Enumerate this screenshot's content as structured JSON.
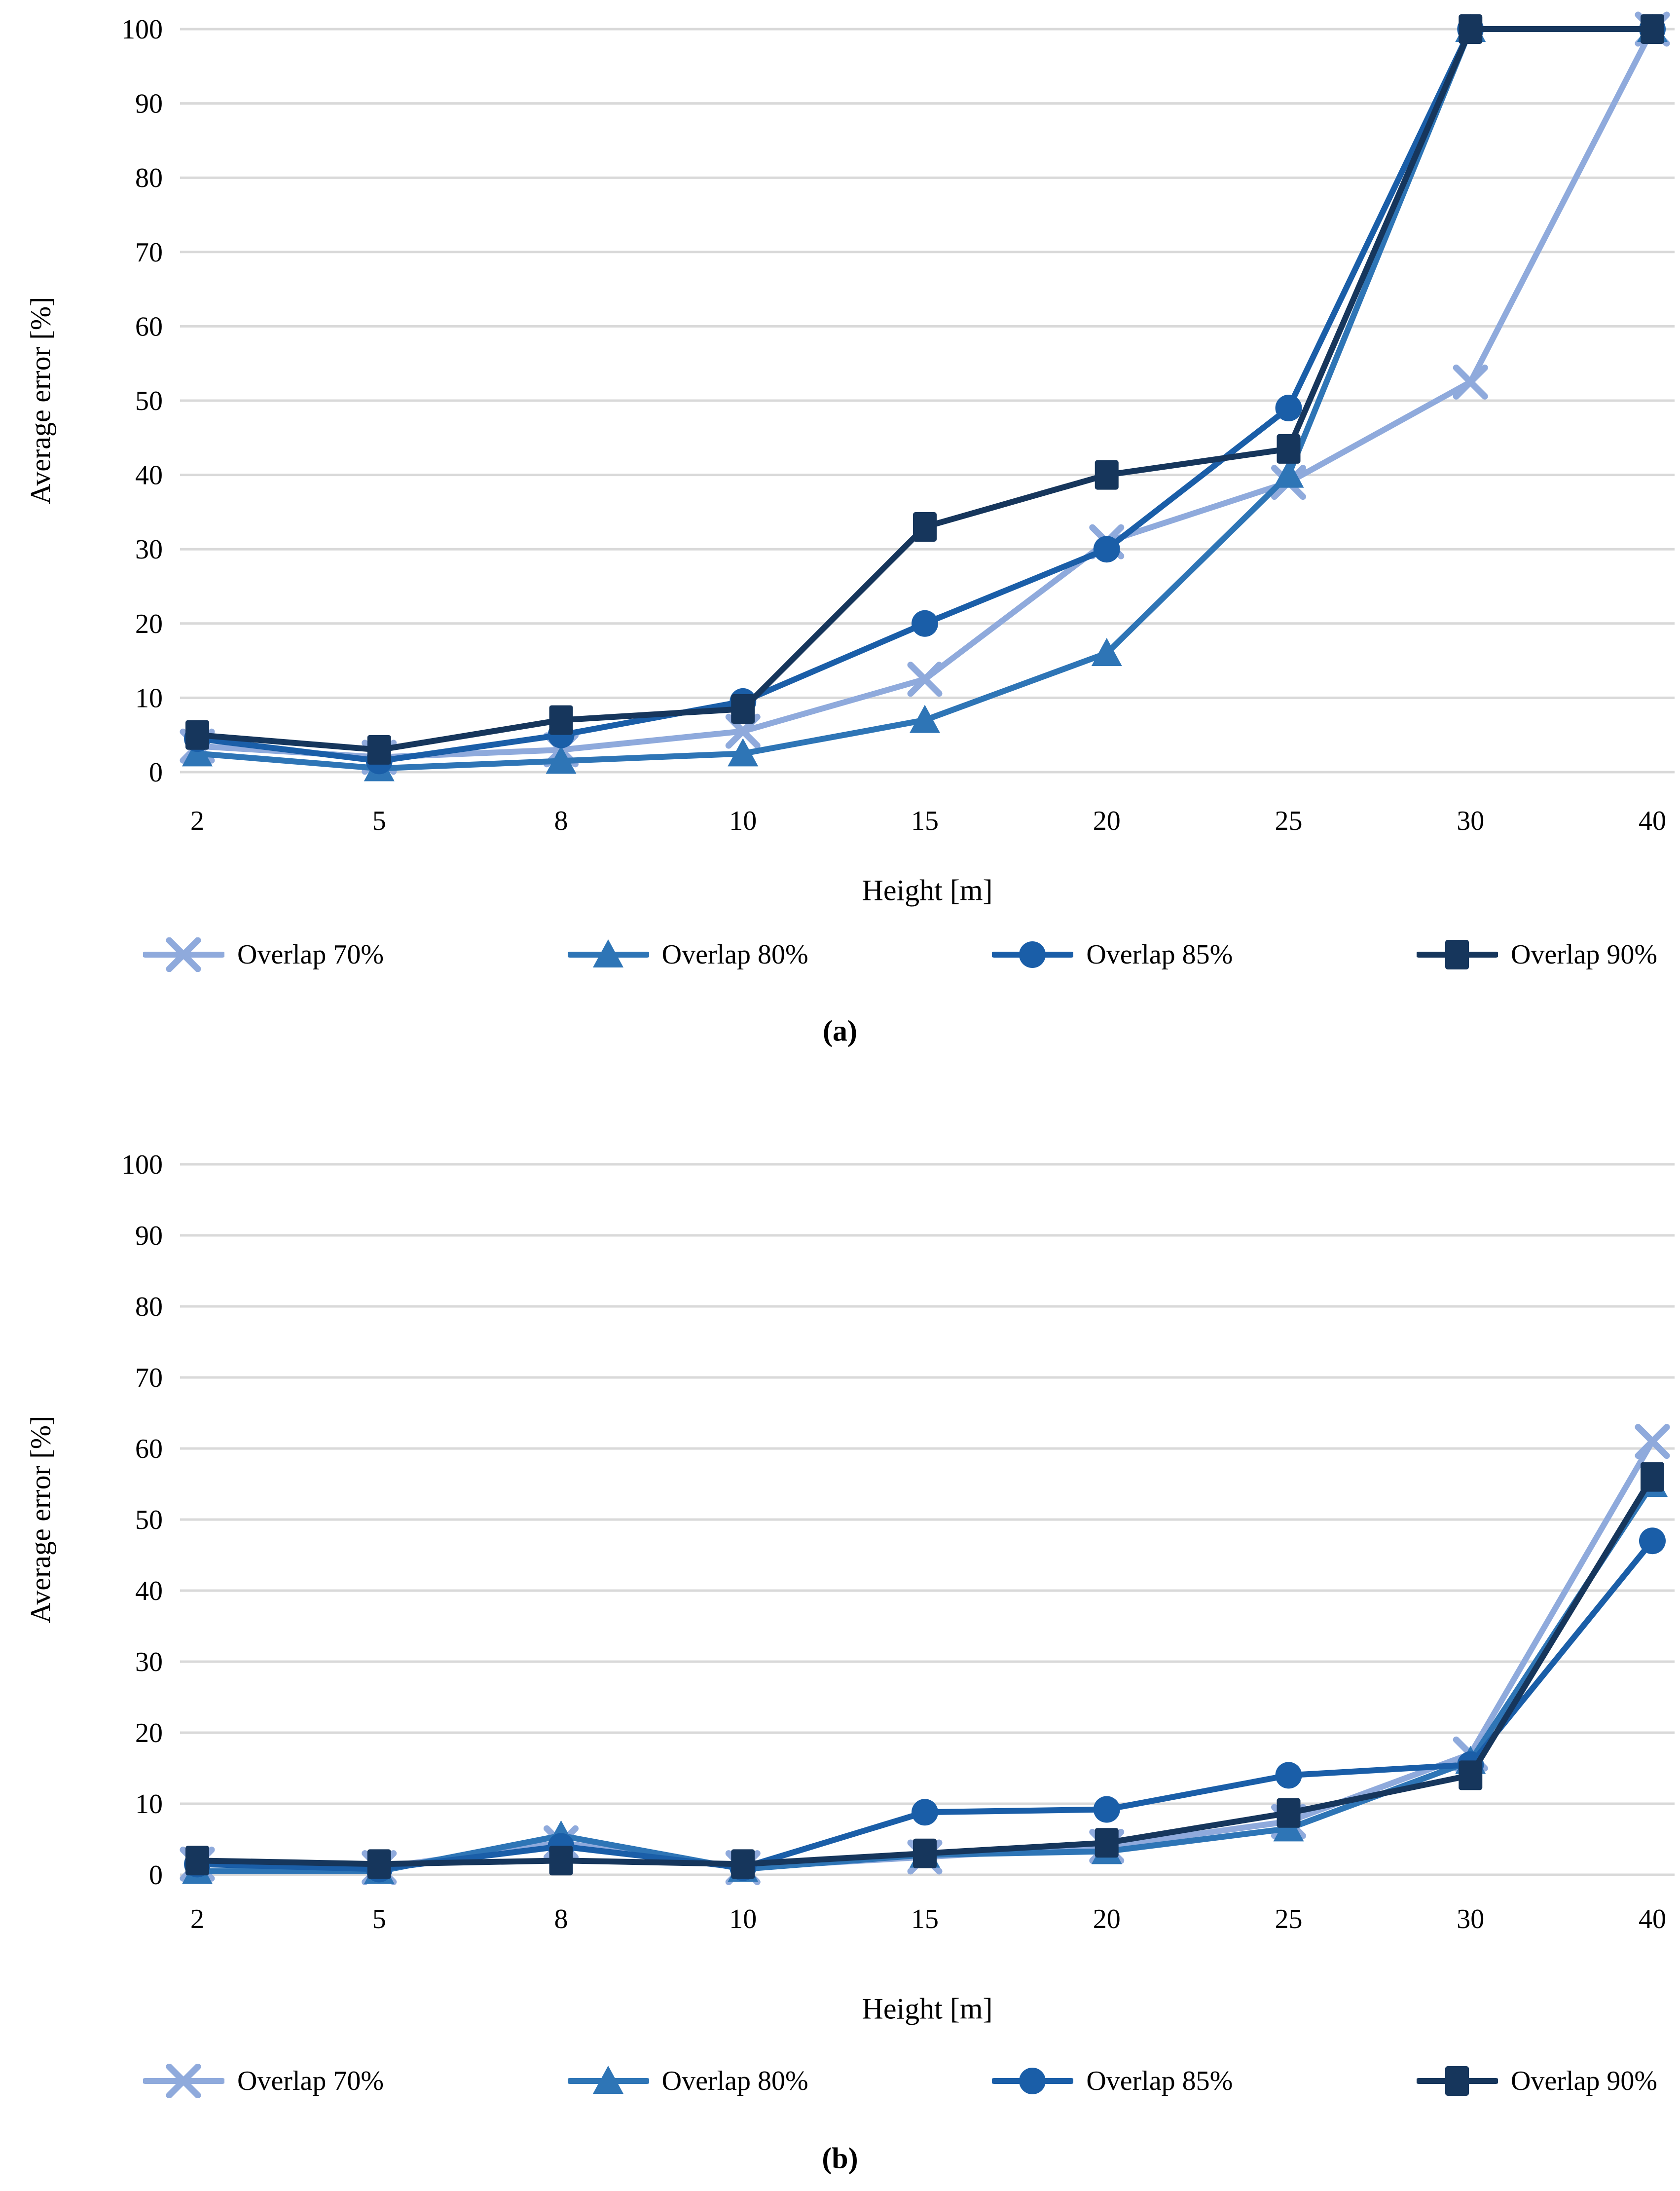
{
  "page": {
    "background": "#ffffff",
    "grid_color": "#d9d9d9",
    "text_color": "#000000"
  },
  "chart_data": [
    {
      "type": "line",
      "caption": "(a)",
      "xlabel": "Height [m]",
      "ylabel": "Average error [%]",
      "categories": [
        "2",
        "5",
        "8",
        "10",
        "15",
        "20",
        "25",
        "30",
        "40"
      ],
      "ylim": [
        0,
        100
      ],
      "y_tick_step": 10,
      "grid": true,
      "legend_position": "bottom",
      "series": [
        {
          "name": "Overlap 70%",
          "marker": "x",
          "color": "#8FAADC",
          "values": [
            3.5,
            2,
            3,
            5.5,
            12.5,
            31,
            39,
            52.5,
            100
          ]
        },
        {
          "name": "Overlap 80%",
          "marker": "triangle",
          "color": "#2E75B6",
          "values": [
            2.5,
            0.5,
            1.5,
            2.5,
            7,
            16,
            40,
            100,
            100
          ]
        },
        {
          "name": "Overlap 85%",
          "marker": "circle",
          "color": "#1A5EA8",
          "values": [
            4.5,
            1.5,
            5,
            9.5,
            20,
            30,
            49,
            100,
            100
          ]
        },
        {
          "name": "Overlap 90%",
          "marker": "square",
          "color": "#16365C",
          "values": [
            5,
            3,
            7,
            8.5,
            33,
            40,
            43.5,
            100,
            100
          ]
        }
      ]
    },
    {
      "type": "line",
      "caption": "(b)",
      "xlabel": "Height [m]",
      "ylabel": "Average error [%]",
      "categories": [
        "2",
        "5",
        "8",
        "10",
        "15",
        "20",
        "25",
        "30",
        "40"
      ],
      "ylim": [
        0,
        100
      ],
      "y_tick_step": 10,
      "grid": true,
      "legend_position": "bottom",
      "series": [
        {
          "name": "Overlap 70%",
          "marker": "x",
          "color": "#8FAADC",
          "values": [
            1.5,
            1,
            4.5,
            1,
            2.5,
            4,
            7.5,
            17,
            61
          ]
        },
        {
          "name": "Overlap 80%",
          "marker": "triangle",
          "color": "#2E75B6",
          "values": [
            0.5,
            0.5,
            5.5,
            0.8,
            2.8,
            3.3,
            6.5,
            16,
            55
          ]
        },
        {
          "name": "Overlap 85%",
          "marker": "circle",
          "color": "#1A5EA8",
          "values": [
            1.5,
            0.8,
            4,
            1,
            8.8,
            9.2,
            14,
            15.5,
            47
          ]
        },
        {
          "name": "Overlap 90%",
          "marker": "square",
          "color": "#16365C",
          "values": [
            2,
            1.5,
            2,
            1.5,
            3,
            4.5,
            8.7,
            14,
            56
          ]
        }
      ]
    }
  ]
}
